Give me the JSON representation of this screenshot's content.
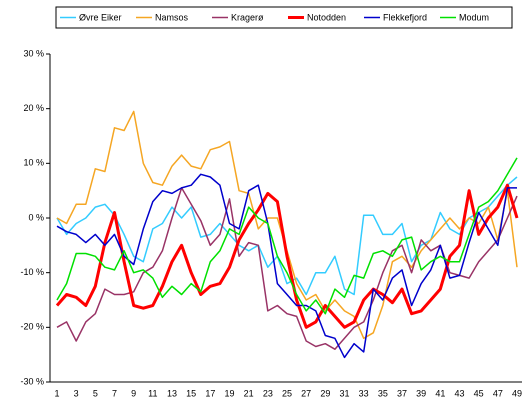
{
  "chart_data": {
    "type": "line",
    "categories": [
      "1",
      null,
      "3",
      null,
      "5",
      null,
      "7",
      null,
      "9",
      null,
      "11",
      null,
      "13",
      null,
      "15",
      null,
      "17",
      null,
      "19",
      null,
      "21",
      null,
      "23",
      null,
      "25",
      null,
      "27",
      null,
      "29",
      null,
      "31",
      null,
      "33",
      null,
      "35",
      null,
      "37",
      null,
      "39",
      null,
      "41",
      null,
      "43",
      null,
      "45",
      null,
      "47",
      null,
      "49"
    ],
    "series": [
      {
        "name": "Øvre Eiker",
        "color": "#33ccff",
        "values": [
          0,
          -3,
          -1,
          0,
          2,
          2.5,
          0.5,
          -3,
          -7,
          -8,
          -2,
          -1,
          2,
          0,
          2,
          -3.5,
          -3,
          -1,
          -3,
          -5,
          -6,
          -5,
          -9,
          -7,
          -12,
          -11,
          -14,
          -10,
          -10,
          -7,
          -13,
          -14,
          0.5,
          0.5,
          -3,
          -3,
          -1,
          -8,
          -5,
          -4,
          1,
          -2,
          -3,
          0,
          1,
          2,
          4,
          6,
          7.5
        ]
      },
      {
        "name": "Namsos",
        "color": "#f5a623",
        "values": [
          0,
          -1,
          2.5,
          2.5,
          9,
          8.5,
          16.5,
          16,
          19.5,
          10,
          6.5,
          6,
          9.5,
          11.5,
          9.5,
          9,
          12.5,
          13,
          14,
          5,
          4.5,
          -2,
          0,
          0,
          -6,
          -12,
          -15,
          -14,
          -17,
          -15,
          -17,
          -18,
          -22,
          -21,
          -16,
          -8,
          -7,
          -9,
          -6,
          -4,
          -2,
          0,
          -2,
          0,
          -1,
          2,
          -4,
          5,
          -9
        ]
      },
      {
        "name": "Kragerø",
        "color": "#993366",
        "values": [
          -20,
          -19,
          -22.5,
          -19,
          -17.5,
          -13,
          -14,
          -14,
          -13.5,
          -10,
          -9,
          -6,
          0,
          5.5,
          2.5,
          -0.5,
          -5,
          -3,
          3.5,
          -7,
          -4.5,
          -5,
          -17,
          -16,
          -17.5,
          -18,
          -22.5,
          -23.5,
          -23,
          -24,
          -22,
          -20,
          -19,
          -15,
          -10,
          -6,
          -5,
          -10,
          -4,
          -6,
          -5,
          -10,
          -10.5,
          -11,
          -8,
          -6,
          -4,
          0,
          4
        ]
      },
      {
        "name": "Notodden",
        "color": "#ff0000",
        "width": 3,
        "values": [
          -16,
          -14,
          -14.5,
          -16,
          -12.5,
          -4.5,
          1,
          -8,
          -16,
          -16.5,
          -16,
          -12.5,
          -8,
          -5,
          -10,
          -14,
          -12.5,
          -12,
          -9,
          -4,
          -1,
          1.5,
          4.5,
          3,
          -7,
          -15,
          -20,
          -19,
          -16,
          -18,
          -20,
          -19,
          -15,
          -13,
          -14,
          -15.5,
          -13,
          -17.5,
          -17,
          -15,
          -13,
          -7,
          -5,
          5,
          -3,
          0,
          2,
          6,
          0
        ]
      },
      {
        "name": "Flekkefjord",
        "color": "#0000cc",
        "values": [
          -1.5,
          -2.5,
          -3,
          -4.5,
          -3,
          -5,
          -3,
          -7,
          -8.5,
          -2,
          3,
          5,
          4.5,
          5.5,
          6,
          8,
          7.5,
          6,
          -1,
          -2,
          5,
          6,
          -1,
          -12,
          -14,
          -16,
          -16,
          -17,
          -21.5,
          -22,
          -25.5,
          -23,
          -24.5,
          -13,
          -15,
          -11,
          -9.5,
          -16,
          -12,
          -9.5,
          -5,
          -11,
          -10.5,
          -4.5,
          1,
          -2,
          -5,
          5.5,
          5.5
        ]
      },
      {
        "name": "Modum",
        "color": "#00e000",
        "values": [
          -15,
          -12,
          -6.5,
          -6.5,
          -7,
          -9,
          -9.5,
          -6,
          -10,
          -9.5,
          -11,
          -14.5,
          -12.5,
          -14,
          -12,
          -13.5,
          -8,
          -6,
          -2,
          -3,
          2,
          0,
          -1,
          -7,
          -10,
          -14,
          -17,
          -15,
          -17.5,
          -13,
          -14.5,
          -10.5,
          -11,
          -6.5,
          -6,
          -7,
          -4,
          -3.5,
          -9.5,
          -8,
          -7,
          -8,
          -8,
          -3,
          2,
          3,
          5,
          8,
          11
        ]
      }
    ],
    "ylim": [
      -30,
      30
    ],
    "yticks": [
      {
        "value": -30,
        "label": "-30 %"
      },
      {
        "value": -20,
        "label": "-20 %"
      },
      {
        "value": -10,
        "label": "-10 %"
      },
      {
        "value": 0,
        "label": "0 %"
      },
      {
        "value": 10,
        "label": "10 %"
      },
      {
        "value": 20,
        "label": "20 %"
      },
      {
        "value": 30,
        "label": "30 %"
      }
    ],
    "grid": false,
    "legend": "top"
  }
}
